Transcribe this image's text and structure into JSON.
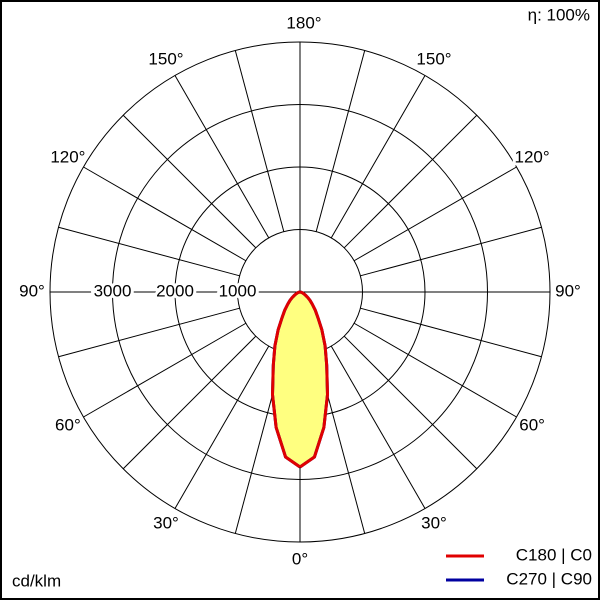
{
  "chart_data": {
    "type": "polar",
    "unit": "cd/klm",
    "efficiency": "η: 100%",
    "angles": [
      0,
      5,
      10,
      15,
      20,
      25,
      30,
      35,
      40,
      45,
      50,
      55,
      60,
      65,
      70,
      75,
      80,
      85,
      90
    ],
    "series": [
      {
        "name": "C270 | C90",
        "color": "#0000a0",
        "values": [
          2800,
          2650,
          2200,
          1700,
          1250,
          950,
          700,
          500,
          380,
          280,
          210,
          150,
          100,
          70,
          45,
          25,
          10,
          0,
          0
        ]
      },
      {
        "name": "C180 | C0",
        "color": "#e00000",
        "values": [
          2800,
          2650,
          2200,
          1700,
          1250,
          950,
          700,
          500,
          380,
          280,
          210,
          150,
          100,
          70,
          45,
          25,
          10,
          0,
          0
        ]
      }
    ],
    "fill": "#ffff80",
    "rlim": [
      0,
      4000
    ],
    "rticks": [
      1000,
      2000,
      3000
    ],
    "alim": [
      0,
      180
    ],
    "angle_grid_step": 15,
    "angle_ticks": [
      {
        "value": 0,
        "label": "0°"
      },
      {
        "value": 30,
        "label": "30°"
      },
      {
        "value": 60,
        "label": "60°"
      },
      {
        "value": 90,
        "label": "90°"
      },
      {
        "value": 120,
        "label": "120°"
      },
      {
        "value": 150,
        "label": "150°"
      },
      {
        "value": 180,
        "label": "180°"
      }
    ]
  }
}
